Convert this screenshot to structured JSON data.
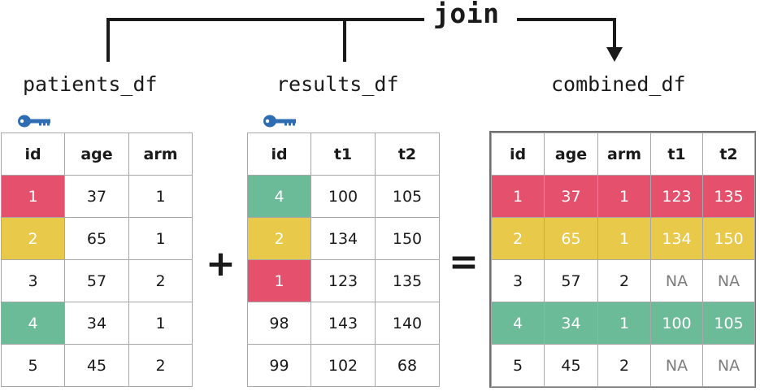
{
  "title": "join",
  "colors": {
    "red": "#e5506c",
    "yellow": "#e9c94a",
    "green": "#6bbb98"
  },
  "key_icon": "key-icon",
  "tables": {
    "patients": {
      "name": "patients_df",
      "columns": [
        "id",
        "age",
        "arm"
      ],
      "rows": [
        {
          "cells": [
            "1",
            "37",
            "1"
          ],
          "highlight_id": "red"
        },
        {
          "cells": [
            "2",
            "65",
            "1"
          ],
          "highlight_id": "yellow"
        },
        {
          "cells": [
            "3",
            "57",
            "2"
          ],
          "highlight_id": ""
        },
        {
          "cells": [
            "4",
            "34",
            "1"
          ],
          "highlight_id": "green"
        },
        {
          "cells": [
            "5",
            "45",
            "2"
          ],
          "highlight_id": ""
        }
      ]
    },
    "results": {
      "name": "results_df",
      "columns": [
        "id",
        "t1",
        "t2"
      ],
      "rows": [
        {
          "cells": [
            "4",
            "100",
            "105"
          ],
          "highlight_id": "green"
        },
        {
          "cells": [
            "2",
            "134",
            "150"
          ],
          "highlight_id": "yellow"
        },
        {
          "cells": [
            "1",
            "123",
            "135"
          ],
          "highlight_id": "red"
        },
        {
          "cells": [
            "98",
            "143",
            "140"
          ],
          "highlight_id": ""
        },
        {
          "cells": [
            "99",
            "102",
            "68"
          ],
          "highlight_id": ""
        }
      ]
    },
    "combined": {
      "name": "combined_df",
      "columns": [
        "id",
        "age",
        "arm",
        "t1",
        "t2"
      ],
      "rows": [
        {
          "cells": [
            "1",
            "37",
            "1",
            "123",
            "135"
          ],
          "highlight_row": "red"
        },
        {
          "cells": [
            "2",
            "65",
            "1",
            "134",
            "150"
          ],
          "highlight_row": "yellow"
        },
        {
          "cells": [
            "3",
            "57",
            "2",
            "NA",
            "NA"
          ],
          "highlight_row": ""
        },
        {
          "cells": [
            "4",
            "34",
            "1",
            "100",
            "105"
          ],
          "highlight_row": "green"
        },
        {
          "cells": [
            "5",
            "45",
            "2",
            "NA",
            "NA"
          ],
          "highlight_row": ""
        }
      ]
    }
  },
  "operators": {
    "plus": "+",
    "equals": "="
  }
}
